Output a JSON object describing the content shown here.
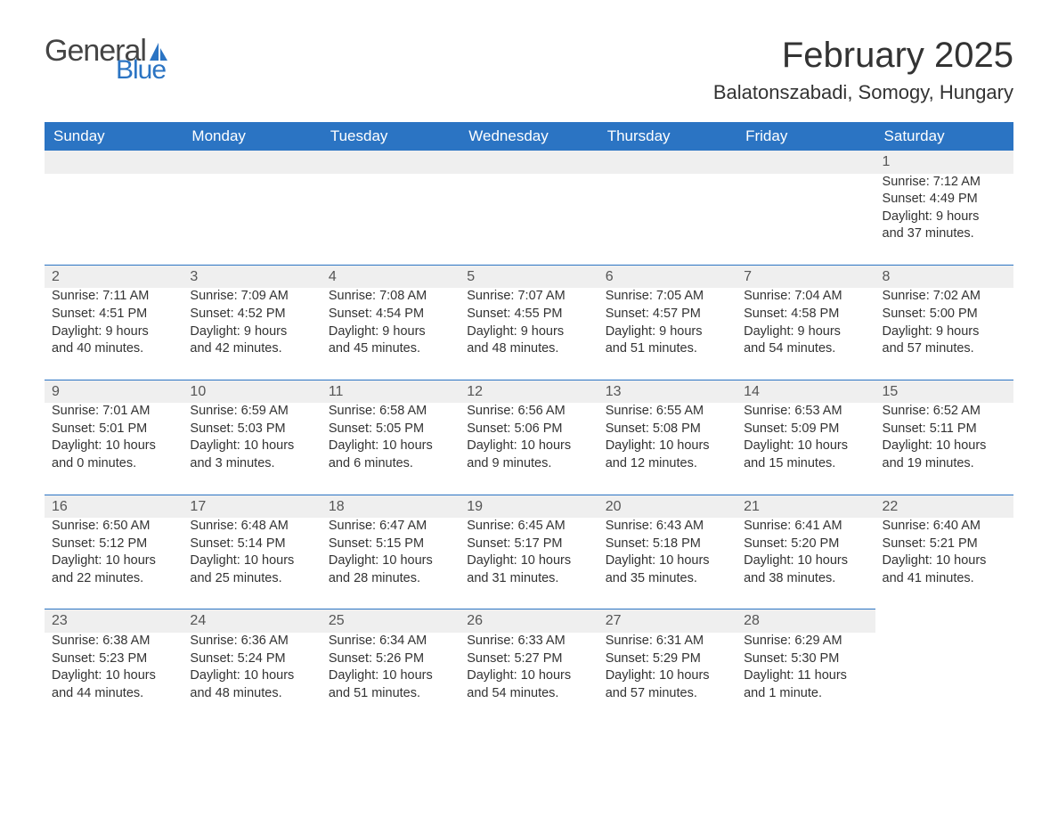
{
  "logo": {
    "word1": "General",
    "word2": "Blue"
  },
  "title": "February 2025",
  "location": "Balatonszabadi, Somogy, Hungary",
  "colors": {
    "brand_blue": "#2b74c3",
    "header_text": "#ffffff",
    "body_text": "#333333",
    "daynum_bg": "#efefef",
    "page_bg": "#ffffff"
  },
  "day_headers": [
    "Sunday",
    "Monday",
    "Tuesday",
    "Wednesday",
    "Thursday",
    "Friday",
    "Saturday"
  ],
  "weeks": [
    [
      null,
      null,
      null,
      null,
      null,
      null,
      {
        "n": "1",
        "sunrise": "Sunrise: 7:12 AM",
        "sunset": "Sunset: 4:49 PM",
        "day1": "Daylight: 9 hours",
        "day2": "and 37 minutes."
      }
    ],
    [
      {
        "n": "2",
        "sunrise": "Sunrise: 7:11 AM",
        "sunset": "Sunset: 4:51 PM",
        "day1": "Daylight: 9 hours",
        "day2": "and 40 minutes."
      },
      {
        "n": "3",
        "sunrise": "Sunrise: 7:09 AM",
        "sunset": "Sunset: 4:52 PM",
        "day1": "Daylight: 9 hours",
        "day2": "and 42 minutes."
      },
      {
        "n": "4",
        "sunrise": "Sunrise: 7:08 AM",
        "sunset": "Sunset: 4:54 PM",
        "day1": "Daylight: 9 hours",
        "day2": "and 45 minutes."
      },
      {
        "n": "5",
        "sunrise": "Sunrise: 7:07 AM",
        "sunset": "Sunset: 4:55 PM",
        "day1": "Daylight: 9 hours",
        "day2": "and 48 minutes."
      },
      {
        "n": "6",
        "sunrise": "Sunrise: 7:05 AM",
        "sunset": "Sunset: 4:57 PM",
        "day1": "Daylight: 9 hours",
        "day2": "and 51 minutes."
      },
      {
        "n": "7",
        "sunrise": "Sunrise: 7:04 AM",
        "sunset": "Sunset: 4:58 PM",
        "day1": "Daylight: 9 hours",
        "day2": "and 54 minutes."
      },
      {
        "n": "8",
        "sunrise": "Sunrise: 7:02 AM",
        "sunset": "Sunset: 5:00 PM",
        "day1": "Daylight: 9 hours",
        "day2": "and 57 minutes."
      }
    ],
    [
      {
        "n": "9",
        "sunrise": "Sunrise: 7:01 AM",
        "sunset": "Sunset: 5:01 PM",
        "day1": "Daylight: 10 hours",
        "day2": "and 0 minutes."
      },
      {
        "n": "10",
        "sunrise": "Sunrise: 6:59 AM",
        "sunset": "Sunset: 5:03 PM",
        "day1": "Daylight: 10 hours",
        "day2": "and 3 minutes."
      },
      {
        "n": "11",
        "sunrise": "Sunrise: 6:58 AM",
        "sunset": "Sunset: 5:05 PM",
        "day1": "Daylight: 10 hours",
        "day2": "and 6 minutes."
      },
      {
        "n": "12",
        "sunrise": "Sunrise: 6:56 AM",
        "sunset": "Sunset: 5:06 PM",
        "day1": "Daylight: 10 hours",
        "day2": "and 9 minutes."
      },
      {
        "n": "13",
        "sunrise": "Sunrise: 6:55 AM",
        "sunset": "Sunset: 5:08 PM",
        "day1": "Daylight: 10 hours",
        "day2": "and 12 minutes."
      },
      {
        "n": "14",
        "sunrise": "Sunrise: 6:53 AM",
        "sunset": "Sunset: 5:09 PM",
        "day1": "Daylight: 10 hours",
        "day2": "and 15 minutes."
      },
      {
        "n": "15",
        "sunrise": "Sunrise: 6:52 AM",
        "sunset": "Sunset: 5:11 PM",
        "day1": "Daylight: 10 hours",
        "day2": "and 19 minutes."
      }
    ],
    [
      {
        "n": "16",
        "sunrise": "Sunrise: 6:50 AM",
        "sunset": "Sunset: 5:12 PM",
        "day1": "Daylight: 10 hours",
        "day2": "and 22 minutes."
      },
      {
        "n": "17",
        "sunrise": "Sunrise: 6:48 AM",
        "sunset": "Sunset: 5:14 PM",
        "day1": "Daylight: 10 hours",
        "day2": "and 25 minutes."
      },
      {
        "n": "18",
        "sunrise": "Sunrise: 6:47 AM",
        "sunset": "Sunset: 5:15 PM",
        "day1": "Daylight: 10 hours",
        "day2": "and 28 minutes."
      },
      {
        "n": "19",
        "sunrise": "Sunrise: 6:45 AM",
        "sunset": "Sunset: 5:17 PM",
        "day1": "Daylight: 10 hours",
        "day2": "and 31 minutes."
      },
      {
        "n": "20",
        "sunrise": "Sunrise: 6:43 AM",
        "sunset": "Sunset: 5:18 PM",
        "day1": "Daylight: 10 hours",
        "day2": "and 35 minutes."
      },
      {
        "n": "21",
        "sunrise": "Sunrise: 6:41 AM",
        "sunset": "Sunset: 5:20 PM",
        "day1": "Daylight: 10 hours",
        "day2": "and 38 minutes."
      },
      {
        "n": "22",
        "sunrise": "Sunrise: 6:40 AM",
        "sunset": "Sunset: 5:21 PM",
        "day1": "Daylight: 10 hours",
        "day2": "and 41 minutes."
      }
    ],
    [
      {
        "n": "23",
        "sunrise": "Sunrise: 6:38 AM",
        "sunset": "Sunset: 5:23 PM",
        "day1": "Daylight: 10 hours",
        "day2": "and 44 minutes."
      },
      {
        "n": "24",
        "sunrise": "Sunrise: 6:36 AM",
        "sunset": "Sunset: 5:24 PM",
        "day1": "Daylight: 10 hours",
        "day2": "and 48 minutes."
      },
      {
        "n": "25",
        "sunrise": "Sunrise: 6:34 AM",
        "sunset": "Sunset: 5:26 PM",
        "day1": "Daylight: 10 hours",
        "day2": "and 51 minutes."
      },
      {
        "n": "26",
        "sunrise": "Sunrise: 6:33 AM",
        "sunset": "Sunset: 5:27 PM",
        "day1": "Daylight: 10 hours",
        "day2": "and 54 minutes."
      },
      {
        "n": "27",
        "sunrise": "Sunrise: 6:31 AM",
        "sunset": "Sunset: 5:29 PM",
        "day1": "Daylight: 10 hours",
        "day2": "and 57 minutes."
      },
      {
        "n": "28",
        "sunrise": "Sunrise: 6:29 AM",
        "sunset": "Sunset: 5:30 PM",
        "day1": "Daylight: 11 hours",
        "day2": "and 1 minute."
      },
      null
    ]
  ]
}
